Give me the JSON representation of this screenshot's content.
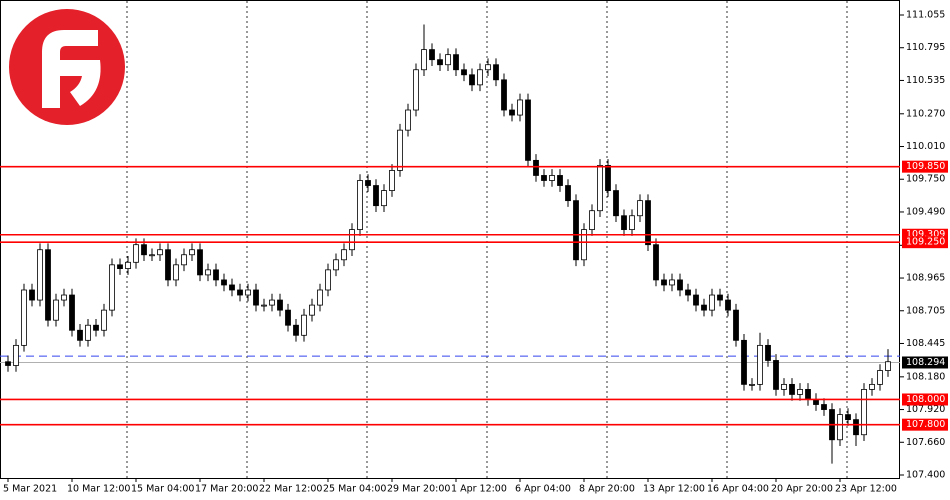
{
  "chart_data": {
    "type": "candlestick",
    "open": [
      108.3,
      108.27,
      108.43,
      108.87,
      108.79,
      109.19,
      108.63,
      108.79,
      108.83,
      108.55,
      108.47,
      108.59,
      108.55,
      108.71,
      109.07,
      109.04,
      109.09,
      109.23,
      109.15,
      109.15,
      109.19,
      108.95,
      109.07,
      109.15,
      109.19,
      108.99,
      109.03,
      108.95,
      108.91,
      108.87,
      108.83,
      108.87,
      108.75,
      108.75,
      108.79,
      108.71,
      108.59,
      108.51,
      108.67,
      108.75,
      108.87,
      109.03,
      109.11,
      109.19,
      109.35,
      109.74,
      109.7,
      109.54,
      109.66,
      109.82,
      110.14,
      110.3,
      110.62,
      110.78,
      110.7,
      110.66,
      110.74,
      110.62,
      110.58,
      110.5,
      110.62,
      110.66,
      110.54,
      110.3,
      110.26,
      110.38,
      109.9,
      109.78,
      109.74,
      109.78,
      109.7,
      109.58,
      109.11,
      109.35,
      109.5,
      109.86,
      109.66,
      109.46,
      109.35,
      109.46,
      109.58,
      109.23,
      108.95,
      108.91,
      108.95,
      108.87,
      108.83,
      108.75,
      108.71,
      108.83,
      108.79,
      108.71,
      108.47,
      108.12,
      108.12,
      108.43,
      108.31,
      108.08,
      108.12,
      108.04,
      108.08,
      108.0,
      107.96,
      107.92,
      107.68,
      107.88,
      107.84,
      107.72,
      108.08,
      108.12,
      108.23
    ],
    "high": [
      108.35,
      108.48,
      108.92,
      108.92,
      109.24,
      109.24,
      108.84,
      108.88,
      108.88,
      108.6,
      108.64,
      108.64,
      108.76,
      109.12,
      109.12,
      109.14,
      109.28,
      109.28,
      109.2,
      109.24,
      109.24,
      109.12,
      109.2,
      109.24,
      109.24,
      109.08,
      109.08,
      109.0,
      108.96,
      108.92,
      108.92,
      108.92,
      108.8,
      108.84,
      108.84,
      108.76,
      108.64,
      108.72,
      108.8,
      108.92,
      109.08,
      109.16,
      109.24,
      109.4,
      109.79,
      109.79,
      109.75,
      109.71,
      109.87,
      110.19,
      110.35,
      110.67,
      110.98,
      110.83,
      110.75,
      110.79,
      110.79,
      110.67,
      110.63,
      110.67,
      110.71,
      110.71,
      110.59,
      110.35,
      110.43,
      110.43,
      109.95,
      109.83,
      109.83,
      109.83,
      109.75,
      109.63,
      109.4,
      109.55,
      109.91,
      109.91,
      109.71,
      109.51,
      109.51,
      109.63,
      109.63,
      109.28,
      109.0,
      109.0,
      109.0,
      108.92,
      108.88,
      108.8,
      108.88,
      108.88,
      108.84,
      108.76,
      108.52,
      108.17,
      108.53,
      108.48,
      108.36,
      108.17,
      108.17,
      108.13,
      108.13,
      108.05,
      108.01,
      107.97,
      107.93,
      107.93,
      107.89,
      108.13,
      108.17,
      108.28,
      108.4
    ],
    "low": [
      108.22,
      108.22,
      108.38,
      108.74,
      108.74,
      108.58,
      108.58,
      108.74,
      108.5,
      108.42,
      108.42,
      108.5,
      108.5,
      108.66,
      108.99,
      108.99,
      109.04,
      109.1,
      109.1,
      109.1,
      108.9,
      108.9,
      109.02,
      109.1,
      108.94,
      108.94,
      108.9,
      108.86,
      108.82,
      108.78,
      108.78,
      108.7,
      108.7,
      108.7,
      108.66,
      108.54,
      108.46,
      108.46,
      108.62,
      108.7,
      108.82,
      108.98,
      109.06,
      109.14,
      109.3,
      109.65,
      109.49,
      109.49,
      109.61,
      109.77,
      110.09,
      110.25,
      110.57,
      110.65,
      110.61,
      110.61,
      110.57,
      110.53,
      110.45,
      110.45,
      110.57,
      110.49,
      110.25,
      110.21,
      110.21,
      109.85,
      109.73,
      109.69,
      109.69,
      109.65,
      109.53,
      109.06,
      109.06,
      109.3,
      109.45,
      109.61,
      109.41,
      109.3,
      109.3,
      109.41,
      109.18,
      108.9,
      108.86,
      108.86,
      108.82,
      108.78,
      108.7,
      108.66,
      108.66,
      108.74,
      108.66,
      108.42,
      108.07,
      108.07,
      108.07,
      108.26,
      108.03,
      108.03,
      107.99,
      107.99,
      107.95,
      107.91,
      107.87,
      107.49,
      107.63,
      107.79,
      107.63,
      107.67,
      108.03,
      108.07,
      108.18
    ],
    "close": [
      108.27,
      108.43,
      108.87,
      108.79,
      109.19,
      108.63,
      108.79,
      108.83,
      108.55,
      108.47,
      108.59,
      108.55,
      108.71,
      109.07,
      109.04,
      109.09,
      109.23,
      109.15,
      109.15,
      109.19,
      108.95,
      109.07,
      109.15,
      109.19,
      108.99,
      109.03,
      108.95,
      108.91,
      108.87,
      108.83,
      108.87,
      108.75,
      108.75,
      108.79,
      108.71,
      108.59,
      108.51,
      108.67,
      108.75,
      108.87,
      109.03,
      109.11,
      109.19,
      109.35,
      109.74,
      109.7,
      109.54,
      109.66,
      109.82,
      110.14,
      110.3,
      110.62,
      110.78,
      110.7,
      110.66,
      110.74,
      110.62,
      110.58,
      110.5,
      110.62,
      110.66,
      110.54,
      110.3,
      110.26,
      110.38,
      109.9,
      109.78,
      109.74,
      109.78,
      109.7,
      109.58,
      109.11,
      109.35,
      109.5,
      109.86,
      109.66,
      109.46,
      109.35,
      109.46,
      109.58,
      109.23,
      108.95,
      108.91,
      108.95,
      108.87,
      108.83,
      108.75,
      108.71,
      108.83,
      108.79,
      108.71,
      108.47,
      108.12,
      108.12,
      108.43,
      108.31,
      108.08,
      108.12,
      108.04,
      108.08,
      108.0,
      107.96,
      107.92,
      107.68,
      107.88,
      107.84,
      107.72,
      108.08,
      108.12,
      108.23,
      108.3
    ],
    "xticks": [
      {
        "value": 0,
        "label": "5 Mar 2021"
      },
      {
        "value": 8,
        "label": "10 Mar 12:00"
      },
      {
        "value": 16,
        "label": "15 Mar 04:00"
      },
      {
        "value": 24,
        "label": "17 Mar 20:00"
      },
      {
        "value": 32,
        "label": "22 Mar 12:00"
      },
      {
        "value": 40,
        "label": "25 Mar 04:00"
      },
      {
        "value": 48,
        "label": "29 Mar 20:00"
      },
      {
        "value": 56,
        "label": "1 Apr 12:00"
      },
      {
        "value": 64,
        "label": "6 Apr 04:00"
      },
      {
        "value": 72,
        "label": "8 Apr 20:00"
      },
      {
        "value": 80,
        "label": "13 Apr 12:00"
      },
      {
        "value": 88,
        "label": "16 Apr 04:00"
      },
      {
        "value": 96,
        "label": "20 Apr 20:00"
      },
      {
        "value": 104,
        "label": "23 Apr 12:00"
      }
    ],
    "ylim": [
      107.4,
      111.055
    ],
    "yticks": [
      111.055,
      110.795,
      110.535,
      {
        "value": 110.27,
        "label": "110.270"
      },
      {
        "value": 110.01,
        "label": "110.010"
      },
      {
        "value": 109.75,
        "label": "109.750"
      },
      {
        "value": 109.49,
        "label": "109.490"
      },
      109.225,
      108.965,
      108.705,
      108.445,
      {
        "value": 108.18,
        "label": "108.180"
      },
      {
        "value": 107.92,
        "label": "107.920"
      },
      {
        "value": 107.66,
        "label": "107.660"
      },
      {
        "value": 107.4,
        "label": "107.400"
      }
    ],
    "levels": [
      {
        "value": 109.85,
        "label": "109.850"
      },
      {
        "value": 109.309,
        "label": "109.309"
      },
      {
        "value": 109.25,
        "label": "109.250"
      },
      {
        "value": 108,
        "label": "108.000"
      },
      {
        "value": 107.8,
        "label": "107.800"
      }
    ],
    "level_color": "#ff0000",
    "current_price": 108.294,
    "dashed_level": {
      "value": 108.345,
      "color": "#3344ee"
    }
  }
}
